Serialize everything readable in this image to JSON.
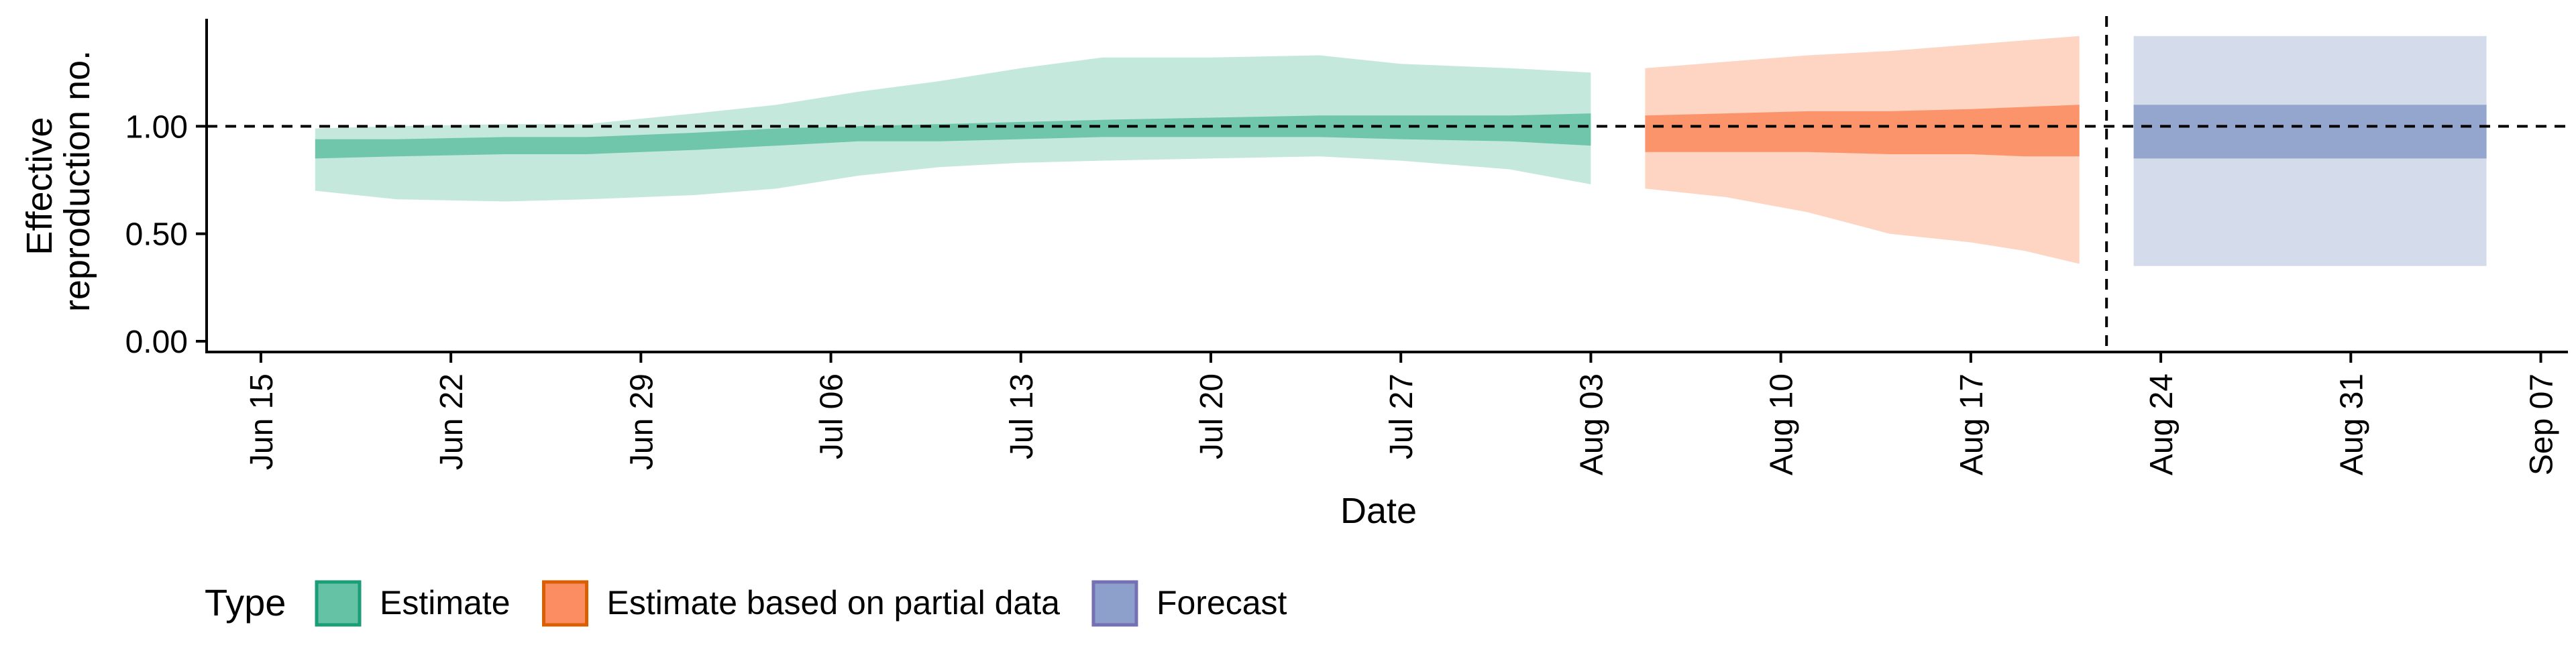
{
  "chart_data": {
    "type": "area",
    "title": "",
    "xlabel": "Date",
    "ylabel": [
      "Effective",
      "reproduction no."
    ],
    "x_axis": {
      "type": "date",
      "domain": [
        "2020-06-13",
        "2020-09-08"
      ],
      "ticks": [
        "2020-06-15",
        "2020-06-22",
        "2020-06-29",
        "2020-07-06",
        "2020-07-13",
        "2020-07-20",
        "2020-07-27",
        "2020-08-03",
        "2020-08-10",
        "2020-08-17",
        "2020-08-24",
        "2020-08-31",
        "2020-09-07"
      ],
      "tick_labels": [
        "Jun 15",
        "Jun 22",
        "Jun 29",
        "Jul 06",
        "Jul 13",
        "Jul 20",
        "Jul 27",
        "Aug 03",
        "Aug 10",
        "Aug 17",
        "Aug 24",
        "Aug 31",
        "Sep 07"
      ]
    },
    "y_axis": {
      "range": [
        -0.05,
        1.5
      ],
      "ticks": [
        0,
        0.5,
        1.0
      ],
      "tick_labels": [
        "0.00",
        "0.50",
        "1.00"
      ]
    },
    "reference_line": {
      "y": 1.0,
      "style": "dashed"
    },
    "forecast_start_line": {
      "x": "2020-08-22",
      "style": "dashed"
    },
    "series": [
      {
        "name": "Estimate",
        "color": "#66c2a5",
        "points": [
          {
            "date": "2020-06-17",
            "lower90": 0.7,
            "lower50": 0.85,
            "upper50": 0.94,
            "upper90": 0.99
          },
          {
            "date": "2020-06-20",
            "lower90": 0.66,
            "lower50": 0.86,
            "upper50": 0.94,
            "upper90": 1.0
          },
          {
            "date": "2020-06-24",
            "lower90": 0.65,
            "lower50": 0.87,
            "upper50": 0.95,
            "upper90": 1.01
          },
          {
            "date": "2020-06-27",
            "lower90": 0.66,
            "lower50": 0.87,
            "upper50": 0.95,
            "upper90": 1.01
          },
          {
            "date": "2020-07-01",
            "lower90": 0.68,
            "lower50": 0.89,
            "upper50": 0.97,
            "upper90": 1.06
          },
          {
            "date": "2020-07-04",
            "lower90": 0.71,
            "lower50": 0.91,
            "upper50": 0.99,
            "upper90": 1.1
          },
          {
            "date": "2020-07-07",
            "lower90": 0.77,
            "lower50": 0.93,
            "upper50": 1.0,
            "upper90": 1.16
          },
          {
            "date": "2020-07-10",
            "lower90": 0.81,
            "lower50": 0.93,
            "upper50": 1.01,
            "upper90": 1.21
          },
          {
            "date": "2020-07-13",
            "lower90": 0.83,
            "lower50": 0.94,
            "upper50": 1.02,
            "upper90": 1.27
          },
          {
            "date": "2020-07-16",
            "lower90": 0.84,
            "lower50": 0.95,
            "upper50": 1.03,
            "upper90": 1.32
          },
          {
            "date": "2020-07-20",
            "lower90": 0.85,
            "lower50": 0.95,
            "upper50": 1.04,
            "upper90": 1.32
          },
          {
            "date": "2020-07-24",
            "lower90": 0.86,
            "lower50": 0.95,
            "upper50": 1.05,
            "upper90": 1.33
          },
          {
            "date": "2020-07-27",
            "lower90": 0.84,
            "lower50": 0.94,
            "upper50": 1.05,
            "upper90": 1.29
          },
          {
            "date": "2020-07-31",
            "lower90": 0.8,
            "lower50": 0.93,
            "upper50": 1.05,
            "upper90": 1.27
          },
          {
            "date": "2020-08-03",
            "lower90": 0.73,
            "lower50": 0.91,
            "upper50": 1.06,
            "upper90": 1.25
          }
        ]
      },
      {
        "name": "Estimate based on partial data",
        "color": "#fc8d62",
        "points": [
          {
            "date": "2020-08-05",
            "lower90": 0.71,
            "lower50": 0.88,
            "upper50": 1.05,
            "upper90": 1.27
          },
          {
            "date": "2020-08-08",
            "lower90": 0.67,
            "lower50": 0.88,
            "upper50": 1.06,
            "upper90": 1.3
          },
          {
            "date": "2020-08-11",
            "lower90": 0.6,
            "lower50": 0.88,
            "upper50": 1.07,
            "upper90": 1.33
          },
          {
            "date": "2020-08-14",
            "lower90": 0.5,
            "lower50": 0.87,
            "upper50": 1.07,
            "upper90": 1.35
          },
          {
            "date": "2020-08-17",
            "lower90": 0.46,
            "lower50": 0.87,
            "upper50": 1.08,
            "upper90": 1.38
          },
          {
            "date": "2020-08-19",
            "lower90": 0.42,
            "lower50": 0.86,
            "upper50": 1.09,
            "upper90": 1.4
          },
          {
            "date": "2020-08-21",
            "lower90": 0.36,
            "lower50": 0.86,
            "upper50": 1.1,
            "upper90": 1.42
          }
        ]
      },
      {
        "name": "Forecast",
        "color": "#8da0cb",
        "points": [
          {
            "date": "2020-08-23",
            "lower90": 0.35,
            "lower50": 0.85,
            "upper50": 1.1,
            "upper90": 1.42
          },
          {
            "date": "2020-09-05",
            "lower90": 0.35,
            "lower50": 0.85,
            "upper50": 1.1,
            "upper90": 1.42
          }
        ]
      }
    ],
    "legend": {
      "title": "Type",
      "position": "bottom-left",
      "entries": [
        {
          "label": "Estimate",
          "fill": "#66c2a5",
          "border": "#1b9e77"
        },
        {
          "label": "Estimate based on partial data",
          "fill": "#fc8d62",
          "border": "#d95f02"
        },
        {
          "label": "Forecast",
          "fill": "#8da0cb",
          "border": "#7570b3"
        }
      ]
    }
  }
}
